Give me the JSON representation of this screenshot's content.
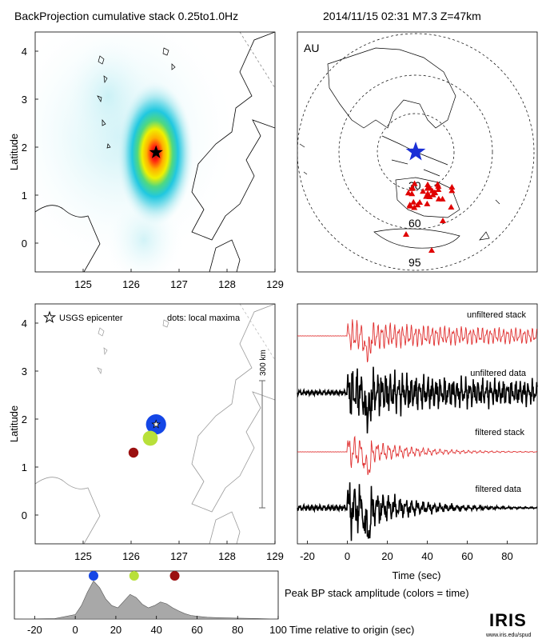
{
  "header": {
    "title": "BackProjection cumulative stack 0.25to1.0Hz",
    "event": "2014/11/15 02:31   M7.3  Z=47km"
  },
  "colors": {
    "epicenter_star": "#000000",
    "array_stations": "#e00000",
    "map_star": "#1a2fd6",
    "trace_stack": "#e03030",
    "trace_data": "#000000",
    "peak_fill": "#a8a8a8",
    "max1": "#1446e6",
    "max2": "#b8e03a",
    "max3": "#9b1010"
  },
  "chart_data": [
    {
      "id": "bp-stack-map",
      "type": "heatmap",
      "ylabel": "Latitude",
      "xlabel": "",
      "xlim": [
        124,
        129
      ],
      "ylim": [
        -0.6,
        4.4
      ],
      "xticks": [
        "125",
        "126",
        "127",
        "128",
        "129"
      ],
      "yticks": [
        "0",
        "1",
        "2",
        "3",
        "4"
      ],
      "epicenter": {
        "lon": 126.52,
        "lat": 1.89
      }
    },
    {
      "id": "array-map",
      "type": "scatter",
      "label": "AU",
      "rings": [
        "30",
        "60",
        "95"
      ],
      "epicenter_icon": "star-icon"
    },
    {
      "id": "local-maxima-map",
      "type": "scatter",
      "ylabel": "Latitude",
      "xlim": [
        124,
        129
      ],
      "ylim": [
        -0.6,
        4.4
      ],
      "xticks": [
        "125",
        "126",
        "127",
        "128",
        "129"
      ],
      "yticks": [
        "0",
        "1",
        "2",
        "3",
        "4"
      ],
      "legend_epicenter": "USGS epicenter",
      "legend_maxima": "dots: local maxima",
      "scale_label": "300 km",
      "epicenter": {
        "lon": 126.52,
        "lat": 1.89
      },
      "maxima": [
        {
          "lon": 126.52,
          "lat": 1.89,
          "size": 3,
          "color": "#1446e6"
        },
        {
          "lon": 126.4,
          "lat": 1.6,
          "size": 2,
          "color": "#b8e03a"
        },
        {
          "lon": 126.05,
          "lat": 1.3,
          "size": 1,
          "color": "#9b1010"
        }
      ]
    },
    {
      "id": "trace-panel",
      "type": "line",
      "xlabel": "Time (sec)",
      "xlim": [
        -25,
        95
      ],
      "xticks": [
        -20,
        0,
        20,
        40,
        60,
        80
      ],
      "series": [
        {
          "name": "unfiltered stack"
        },
        {
          "name": "unfiltered data"
        },
        {
          "name": "filtered stack"
        },
        {
          "name": "filtered data"
        }
      ]
    },
    {
      "id": "peak-amplitude",
      "type": "area",
      "title": "Peak BP stack amplitude (colors = time)",
      "xlabel": "Time relative to origin (sec)",
      "xlim": [
        -30,
        100
      ],
      "ylim": [
        0,
        1
      ],
      "xticks": [
        -20,
        0,
        20,
        40,
        60,
        80,
        100
      ],
      "x": [
        -30,
        -10,
        0,
        3,
        6,
        9,
        12,
        15,
        18,
        21,
        24,
        27,
        30,
        33,
        36,
        39,
        42,
        45,
        48,
        51,
        54,
        57,
        60,
        65,
        70,
        80,
        90,
        100
      ],
      "y": [
        0.0,
        0.01,
        0.1,
        0.3,
        0.6,
        0.85,
        0.7,
        0.45,
        0.3,
        0.25,
        0.4,
        0.55,
        0.48,
        0.33,
        0.25,
        0.3,
        0.38,
        0.34,
        0.25,
        0.18,
        0.12,
        0.08,
        0.06,
        0.04,
        0.03,
        0.02,
        0.01,
        0.0
      ],
      "peaks": [
        {
          "t": 9,
          "color": "#1446e6"
        },
        {
          "t": 29,
          "color": "#b8e03a"
        },
        {
          "t": 49,
          "color": "#9b1010"
        }
      ]
    }
  ],
  "footer": {
    "logo": "IRIS",
    "logo_url": "www.iris.edu/spud"
  }
}
